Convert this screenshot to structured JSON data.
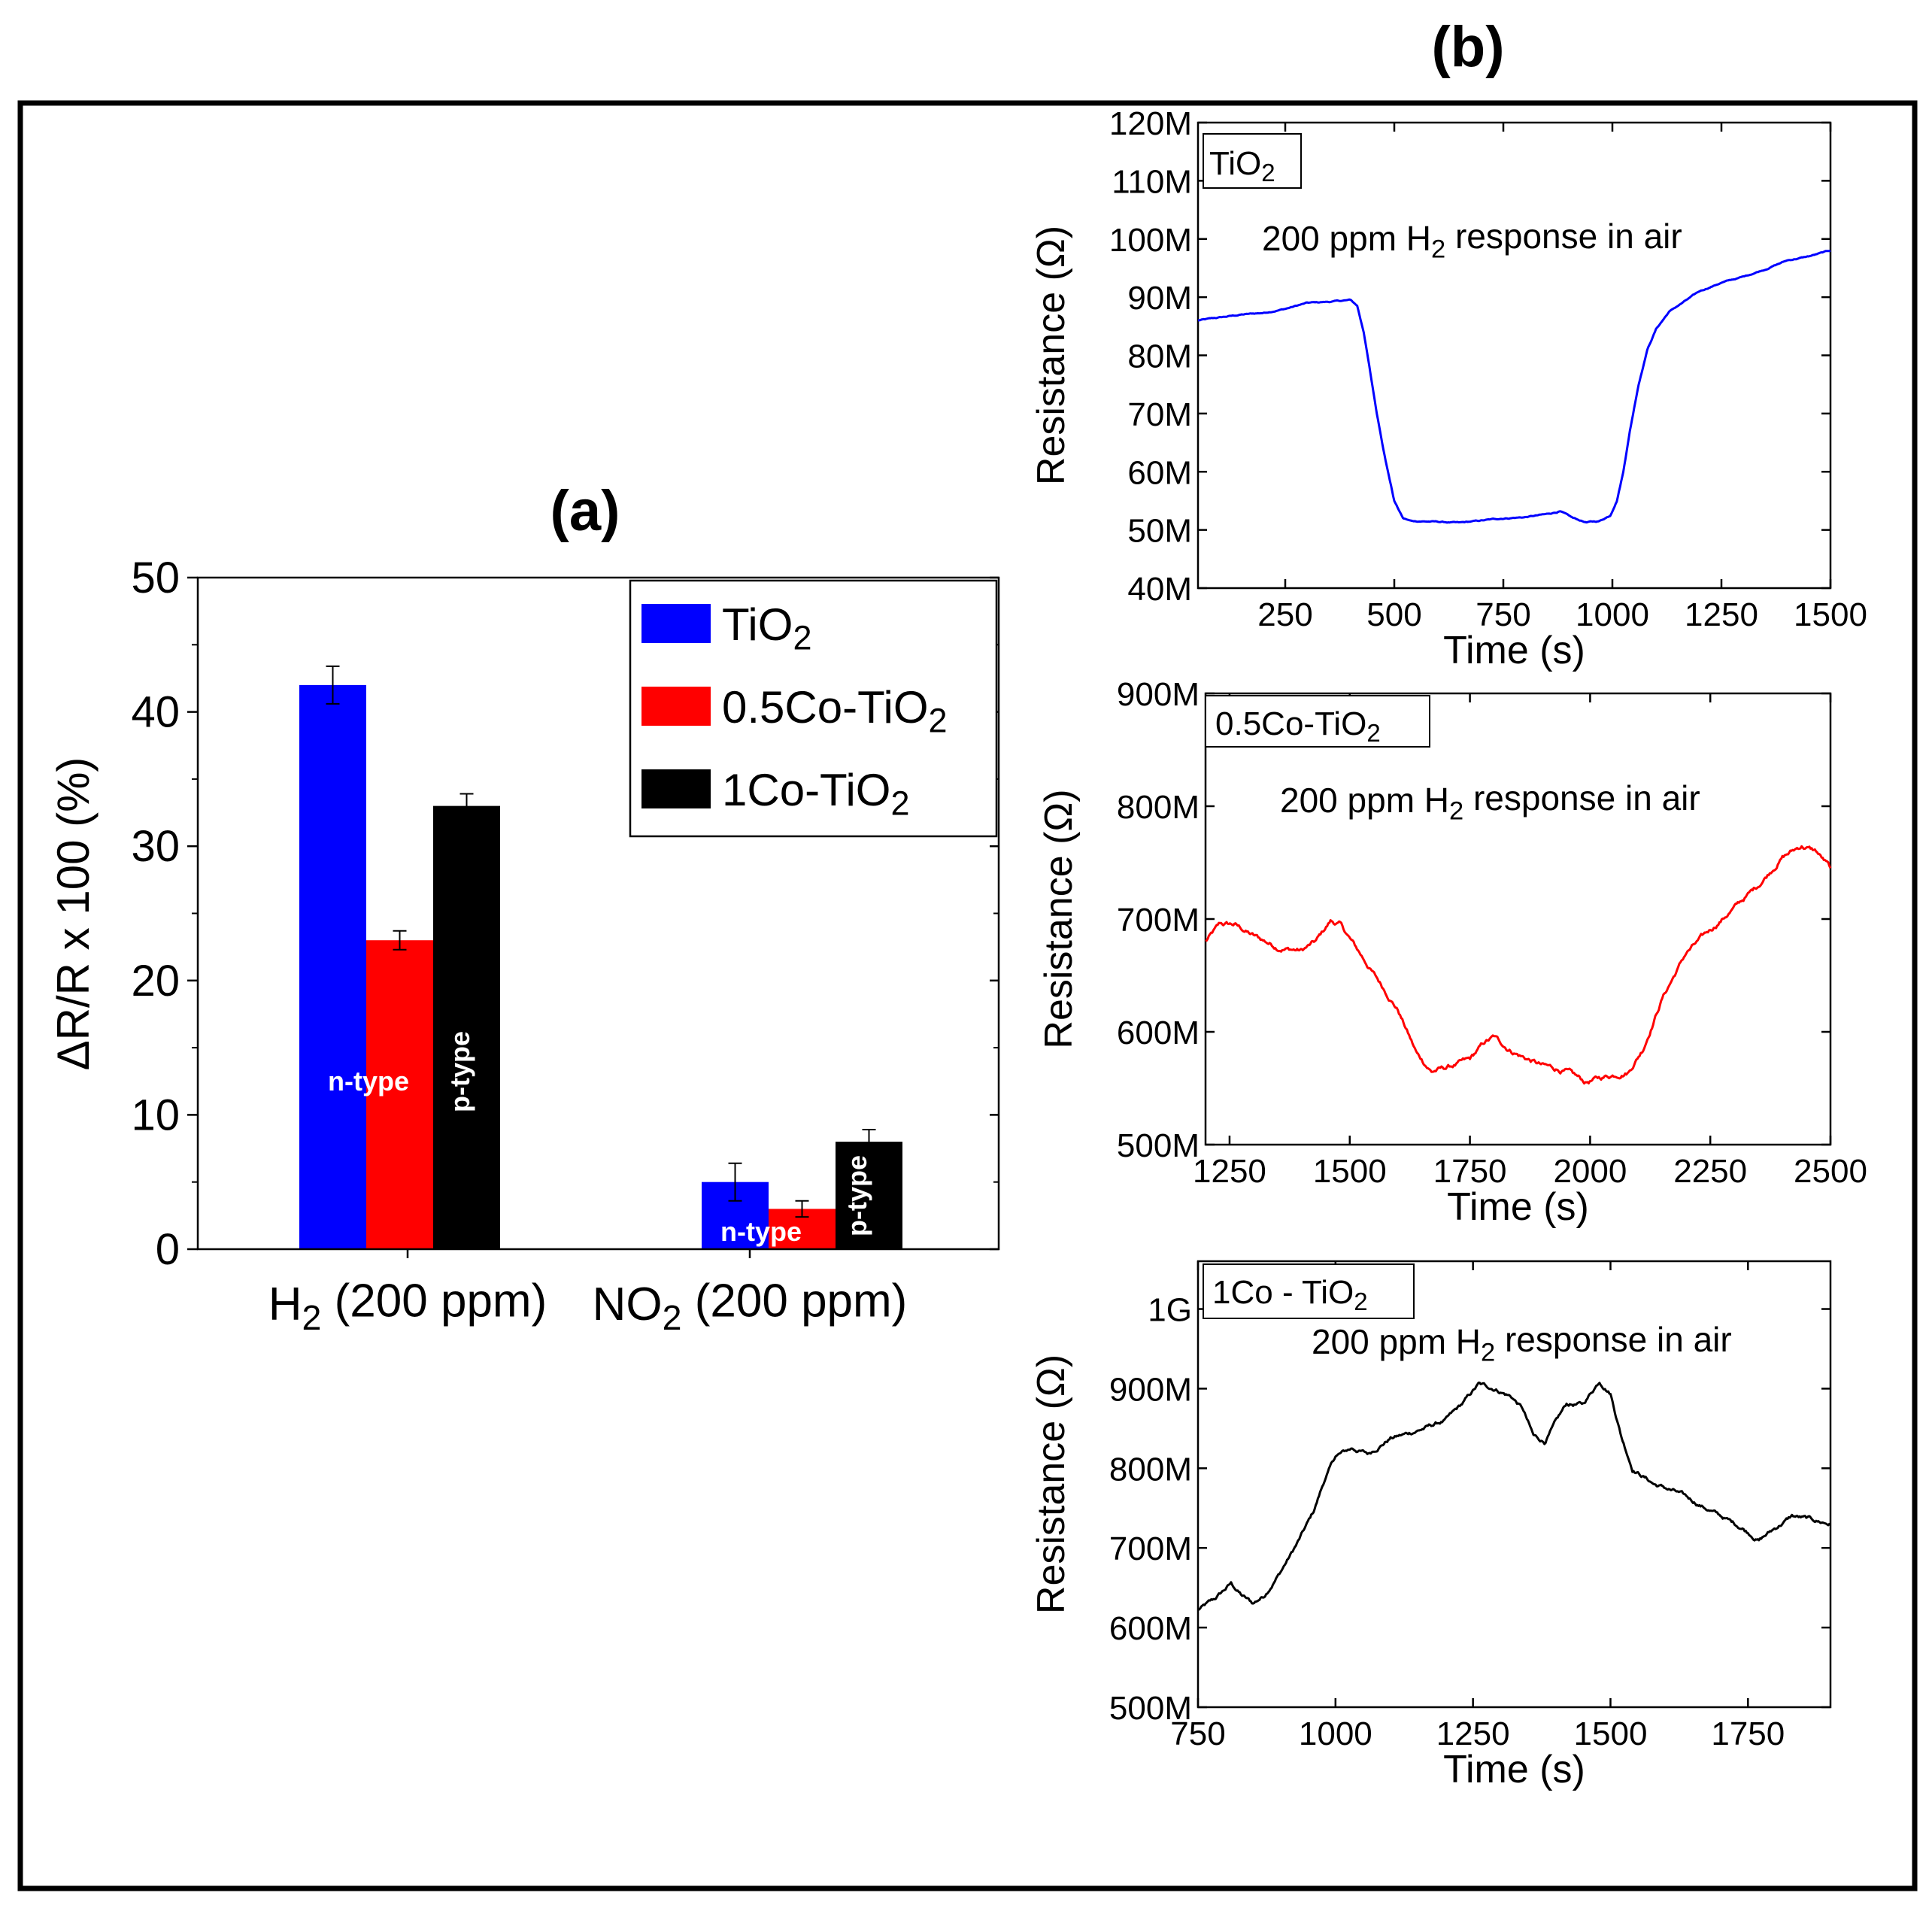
{
  "figure": {
    "panel_a_label": "(a)",
    "panel_b_label": "(b)"
  },
  "chart_data": [
    {
      "id": "a",
      "type": "bar",
      "title": "(a)",
      "ylabel": "ΔR/R x 100 (%)",
      "xlabel": "",
      "ylim": [
        0,
        50
      ],
      "yticks": [
        0,
        10,
        20,
        30,
        40,
        50
      ],
      "categories": [
        {
          "base": "H",
          "sub": "2",
          "rest": " (200 ppm)"
        },
        {
          "base": "NO",
          "sub": "2",
          "rest": " (200 ppm)"
        }
      ],
      "legend_position": "top-right",
      "series": [
        {
          "name": "TiO2",
          "label_base": "TiO",
          "label_sub": "2",
          "color": "#0000ff",
          "values": [
            42,
            5
          ],
          "errors": [
            1.4,
            1.4
          ]
        },
        {
          "name": "0.5Co-TiO2",
          "label_base": "0.5Co-TiO",
          "label_sub": "2",
          "color": "#ff0000",
          "values": [
            23,
            3
          ],
          "errors": [
            0.7,
            0.6
          ]
        },
        {
          "name": "1Co-TiO2",
          "label_base": "1Co-TiO",
          "label_sub": "2",
          "color": "#000000",
          "values": [
            33,
            8
          ],
          "errors": [
            0.9,
            0.9
          ]
        }
      ],
      "annotations": {
        "h2_n": "n-type",
        "h2_p": "p-type",
        "no2_n": "n-type",
        "no2_p": "p-type"
      }
    },
    {
      "id": "b1",
      "type": "line",
      "xlabel": "Time (s)",
      "ylabel": "Resistance (Ω)",
      "xlim": [
        50,
        1500
      ],
      "ylim": [
        40,
        120
      ],
      "xticks": [
        250,
        500,
        750,
        1000,
        1250,
        1500
      ],
      "yticks": [
        40,
        50,
        60,
        70,
        80,
        90,
        100,
        110,
        120
      ],
      "yticklabels": [
        "40M",
        "50M",
        "60M",
        "70M",
        "80M",
        "90M",
        "100M",
        "110M",
        "120M"
      ],
      "sample_base": "TiO",
      "sample_sub": "2",
      "note": {
        "pre": "200 ppm H",
        "sub": "2",
        "post": " response in air"
      },
      "color": "#0000ff",
      "noise": 0.15,
      "series": {
        "x": [
          50,
          100,
          150,
          200,
          250,
          300,
          350,
          400,
          415,
          430,
          445,
          460,
          480,
          500,
          520,
          540,
          560,
          600,
          650,
          700,
          750,
          800,
          850,
          880,
          910,
          940,
          970,
          995,
          1010,
          1025,
          1040,
          1060,
          1080,
          1100,
          1130,
          1170,
          1200,
          1250,
          1300,
          1350,
          1400,
          1450,
          1500
        ],
        "y": [
          86,
          86.5,
          87,
          87.3,
          88,
          89,
          89.2,
          89.5,
          88.5,
          84,
          77,
          70,
          62,
          55,
          52,
          51.5,
          51.5,
          51.4,
          51.2,
          51.6,
          52,
          52.2,
          52.7,
          53.2,
          52,
          51.3,
          51.5,
          52.5,
          55,
          60,
          67,
          75,
          81,
          84.5,
          87.5,
          89.5,
          91,
          92.5,
          93.5,
          94.8,
          96.3,
          97,
          98
        ]
      }
    },
    {
      "id": "b2",
      "type": "line",
      "xlabel": "Time (s)",
      "ylabel": "Resistance (Ω)",
      "xlim": [
        1200,
        2500
      ],
      "ylim": [
        500,
        900
      ],
      "xticks": [
        1250,
        1500,
        1750,
        2000,
        2250,
        2500
      ],
      "yticks": [
        500,
        600,
        700,
        800,
        900
      ],
      "yticklabels": [
        "500M",
        "600M",
        "700M",
        "800M",
        "900M"
      ],
      "sample_base": "0.5Co-TiO",
      "sample_sub": "2",
      "note": {
        "pre": "200 ppm H",
        "sub": "2",
        "post": " response in air"
      },
      "color": "#ff0000",
      "noise": 3.5,
      "series": {
        "x": [
          1200,
          1230,
          1260,
          1300,
          1350,
          1400,
          1430,
          1460,
          1480,
          1520,
          1560,
          1600,
          1640,
          1670,
          1700,
          1750,
          1780,
          1800,
          1830,
          1860,
          1900,
          1950,
          1990,
          2030,
          2080,
          2110,
          2150,
          2200,
          2250,
          2300,
          2350,
          2400,
          2440,
          2470,
          2500
        ],
        "y": [
          680,
          695,
          695,
          685,
          675,
          672,
          680,
          698,
          695,
          670,
          645,
          620,
          580,
          565,
          568,
          575,
          590,
          595,
          585,
          578,
          570,
          565,
          555,
          560,
          565,
          585,
          630,
          670,
          690,
          710,
          730,
          755,
          765,
          760,
          745
        ]
      }
    },
    {
      "id": "b3",
      "type": "line",
      "xlabel": "Time (s)",
      "ylabel": "Resistance (Ω)",
      "xlim": [
        750,
        1900
      ],
      "ylim": [
        500,
        1060
      ],
      "xticks": [
        750,
        1000,
        1250,
        1500,
        1750
      ],
      "yticks": [
        500,
        600,
        700,
        800,
        900,
        1000
      ],
      "yticklabels": [
        "500M",
        "600M",
        "700M",
        "800M",
        "900M",
        "1G"
      ],
      "sample_base": "1Co - TiO",
      "sample_sub": "2",
      "note": {
        "pre": "200 ppm H",
        "sub": "2",
        "post": " response in air"
      },
      "color": "#000000",
      "noise": 4,
      "series": {
        "x": [
          750,
          780,
          810,
          830,
          850,
          870,
          900,
          930,
          960,
          980,
          1000,
          1030,
          1060,
          1100,
          1130,
          1160,
          1200,
          1230,
          1260,
          1290,
          1320,
          1340,
          1360,
          1380,
          1420,
          1450,
          1480,
          1500,
          1520,
          1540,
          1580,
          1620,
          1660,
          1700,
          1740,
          1770,
          1800,
          1830,
          1860,
          1900
        ],
        "y": [
          622,
          635,
          655,
          640,
          630,
          640,
          670,
          705,
          745,
          785,
          815,
          825,
          818,
          838,
          843,
          850,
          860,
          880,
          905,
          900,
          890,
          875,
          840,
          833,
          880,
          880,
          910,
          895,
          840,
          800,
          780,
          770,
          755,
          740,
          725,
          710,
          725,
          740,
          736,
          730
        ]
      }
    }
  ]
}
